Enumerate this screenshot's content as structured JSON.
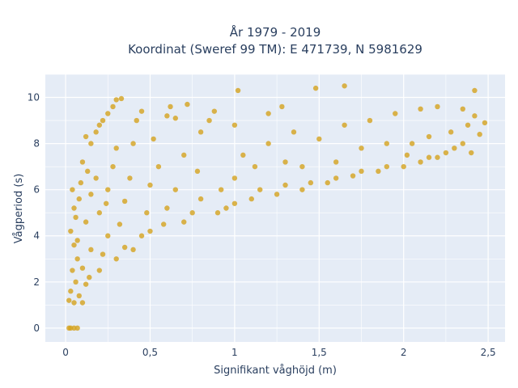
{
  "chart_data": {
    "type": "scatter",
    "title_line1": "År 1979 - 2019",
    "title_line2": "Koordinat (Sweref 99 TM): E 471739, N 5981629",
    "xlabel": "Signifikant våghöjd (m)",
    "ylabel": "Vågperiod (s)",
    "xlim": [
      -0.12,
      2.6
    ],
    "ylim": [
      -0.6,
      11
    ],
    "xticks": [
      0,
      0.5,
      1,
      1.5,
      2,
      2.5
    ],
    "xtick_labels": [
      "0",
      "0,5",
      "1",
      "1,5",
      "2",
      "2,5"
    ],
    "yticks": [
      0,
      2,
      4,
      6,
      8,
      10
    ],
    "ytick_labels": [
      "0",
      "2",
      "4",
      "6",
      "8",
      "10"
    ],
    "grid": true,
    "colors": {
      "marker": "#d4a21e",
      "plot_bg": "#e5ecf6",
      "grid": "#ffffff"
    },
    "points": [
      [
        0.02,
        0
      ],
      [
        0.03,
        0
      ],
      [
        0.05,
        0
      ],
      [
        0.07,
        0
      ],
      [
        0.02,
        1.2
      ],
      [
        0.03,
        1.6
      ],
      [
        0.05,
        1.1
      ],
      [
        0.06,
        2.0
      ],
      [
        0.08,
        1.4
      ],
      [
        0.1,
        1.1
      ],
      [
        0.04,
        2.5
      ],
      [
        0.07,
        3.0
      ],
      [
        0.05,
        3.6
      ],
      [
        0.03,
        4.2
      ],
      [
        0.06,
        4.8
      ],
      [
        0.08,
        5.6
      ],
      [
        0.04,
        6.0
      ],
      [
        0.09,
        6.3
      ],
      [
        0.05,
        5.2
      ],
      [
        0.07,
        3.8
      ],
      [
        0.1,
        2.6
      ],
      [
        0.12,
        1.9
      ],
      [
        0.14,
        2.2
      ],
      [
        0.15,
        3.4
      ],
      [
        0.12,
        4.6
      ],
      [
        0.15,
        5.8
      ],
      [
        0.13,
        6.8
      ],
      [
        0.1,
        7.2
      ],
      [
        0.15,
        8.0
      ],
      [
        0.12,
        8.3
      ],
      [
        0.18,
        8.5
      ],
      [
        0.2,
        8.8
      ],
      [
        0.22,
        9.0
      ],
      [
        0.25,
        9.3
      ],
      [
        0.28,
        9.6
      ],
      [
        0.3,
        9.9
      ],
      [
        0.33,
        9.95
      ],
      [
        0.2,
        2.5
      ],
      [
        0.22,
        3.2
      ],
      [
        0.25,
        4.0
      ],
      [
        0.2,
        5.0
      ],
      [
        0.25,
        6.0
      ],
      [
        0.28,
        7.0
      ],
      [
        0.3,
        7.8
      ],
      [
        0.18,
        6.5
      ],
      [
        0.24,
        5.4
      ],
      [
        0.3,
        3.0
      ],
      [
        0.32,
        4.5
      ],
      [
        0.35,
        5.5
      ],
      [
        0.38,
        6.5
      ],
      [
        0.4,
        8.0
      ],
      [
        0.42,
        9.0
      ],
      [
        0.45,
        9.4
      ],
      [
        0.35,
        3.5
      ],
      [
        0.4,
        3.4
      ],
      [
        0.45,
        4.0
      ],
      [
        0.5,
        4.2
      ],
      [
        0.48,
        5.0
      ],
      [
        0.5,
        6.2
      ],
      [
        0.55,
        7.0
      ],
      [
        0.52,
        8.2
      ],
      [
        0.6,
        9.2
      ],
      [
        0.62,
        9.6
      ],
      [
        0.65,
        9.1
      ],
      [
        0.58,
        4.5
      ],
      [
        0.6,
        5.2
      ],
      [
        0.65,
        6.0
      ],
      [
        0.7,
        7.5
      ],
      [
        0.7,
        4.6
      ],
      [
        0.75,
        5.0
      ],
      [
        0.8,
        5.6
      ],
      [
        0.78,
        6.8
      ],
      [
        0.8,
        8.5
      ],
      [
        0.85,
        9.0
      ],
      [
        0.88,
        9.4
      ],
      [
        0.72,
        9.7
      ],
      [
        0.9,
        5.0
      ],
      [
        0.95,
        5.2
      ],
      [
        0.92,
        6.0
      ],
      [
        1.0,
        5.4
      ],
      [
        1.0,
        6.5
      ],
      [
        1.05,
        7.5
      ],
      [
        1.0,
        8.8
      ],
      [
        1.02,
        10.3
      ],
      [
        1.1,
        5.6
      ],
      [
        1.15,
        6.0
      ],
      [
        1.12,
        7.0
      ],
      [
        1.2,
        8.0
      ],
      [
        1.2,
        9.3
      ],
      [
        1.25,
        5.8
      ],
      [
        1.3,
        6.2
      ],
      [
        1.3,
        7.2
      ],
      [
        1.35,
        8.5
      ],
      [
        1.28,
        9.6
      ],
      [
        1.4,
        6.0
      ],
      [
        1.45,
        6.3
      ],
      [
        1.4,
        7.0
      ],
      [
        1.5,
        8.2
      ],
      [
        1.48,
        10.4
      ],
      [
        1.55,
        6.3
      ],
      [
        1.6,
        6.5
      ],
      [
        1.6,
        7.2
      ],
      [
        1.65,
        8.8
      ],
      [
        1.65,
        10.5
      ],
      [
        1.7,
        6.6
      ],
      [
        1.75,
        6.8
      ],
      [
        1.75,
        7.8
      ],
      [
        1.8,
        9.0
      ],
      [
        1.85,
        6.8
      ],
      [
        1.9,
        7.0
      ],
      [
        1.9,
        8.0
      ],
      [
        1.95,
        9.3
      ],
      [
        2.0,
        7.0
      ],
      [
        2.02,
        7.5
      ],
      [
        2.05,
        8.0
      ],
      [
        2.1,
        9.5
      ],
      [
        2.1,
        7.2
      ],
      [
        2.15,
        7.4
      ],
      [
        2.15,
        8.3
      ],
      [
        2.2,
        9.6
      ],
      [
        2.2,
        7.4
      ],
      [
        2.25,
        7.6
      ],
      [
        2.28,
        8.5
      ],
      [
        2.3,
        7.8
      ],
      [
        2.35,
        8.0
      ],
      [
        2.35,
        9.5
      ],
      [
        2.38,
        8.8
      ],
      [
        2.4,
        7.6
      ],
      [
        2.42,
        9.2
      ],
      [
        2.45,
        8.4
      ],
      [
        2.48,
        8.9
      ],
      [
        2.42,
        10.3
      ]
    ]
  }
}
